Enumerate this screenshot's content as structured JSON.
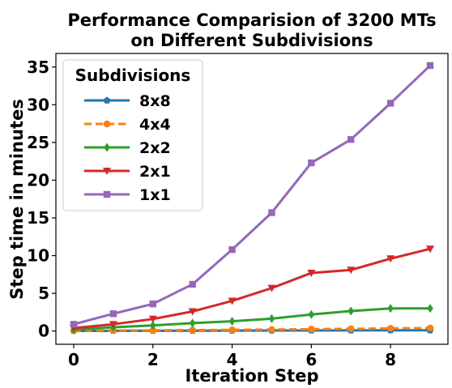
{
  "chart_data": {
    "type": "line",
    "title_lines": [
      "Performance Comparision of 3200 MTs",
      "on Different Subdivisions"
    ],
    "xlabel": "Iteration Step",
    "ylabel": "Step time in minutes",
    "xlim": [
      -0.45,
      9.45
    ],
    "ylim": [
      -1.75,
      36.8
    ],
    "x_ticks": [
      0,
      2,
      4,
      6,
      8
    ],
    "y_ticks": [
      0,
      5,
      10,
      15,
      20,
      25,
      30,
      35
    ],
    "x": [
      0,
      1,
      2,
      3,
      4,
      5,
      6,
      7,
      8,
      9
    ],
    "grid": false,
    "legend": {
      "title": "Subdivisions",
      "position": "top-left"
    },
    "series": [
      {
        "name": "8x8",
        "color": "#1f77b4",
        "marker": "pentagon",
        "dashed": false,
        "values": [
          0.02,
          0.03,
          0.04,
          0.05,
          0.06,
          0.07,
          0.08,
          0.09,
          0.1,
          0.1
        ]
      },
      {
        "name": "4x4",
        "color": "#ff7f0e",
        "marker": "circle",
        "dashed": true,
        "values": [
          0.05,
          0.08,
          0.1,
          0.13,
          0.16,
          0.2,
          0.25,
          0.3,
          0.35,
          0.4
        ]
      },
      {
        "name": "2x2",
        "color": "#2ca02c",
        "marker": "diamond",
        "dashed": false,
        "values": [
          0.2,
          0.5,
          0.75,
          1.05,
          1.3,
          1.65,
          2.2,
          2.65,
          3.0,
          3.0
        ]
      },
      {
        "name": "2x1",
        "color": "#d62728",
        "marker": "triangle-down",
        "dashed": false,
        "values": [
          0.4,
          0.9,
          1.6,
          2.6,
          4.0,
          5.7,
          7.7,
          8.1,
          9.6,
          10.9
        ]
      },
      {
        "name": "1x1",
        "color": "#9467bd",
        "marker": "square",
        "dashed": false,
        "values": [
          0.9,
          2.3,
          3.6,
          6.2,
          10.8,
          15.7,
          22.3,
          25.4,
          30.2,
          35.2
        ]
      }
    ]
  }
}
